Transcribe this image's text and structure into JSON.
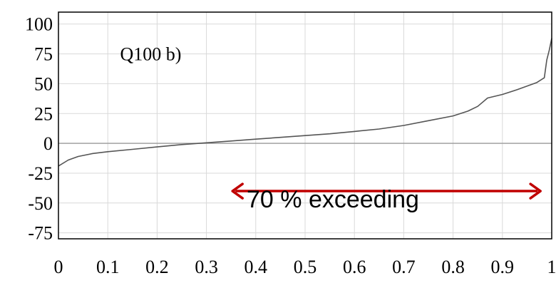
{
  "chart_data": {
    "type": "line",
    "title": "",
    "xlabel": "",
    "ylabel": "",
    "panel_label": "Q100 b)",
    "xlim": [
      0,
      1
    ],
    "ylim": [
      -80,
      110
    ],
    "x_ticks": [
      0,
      0.1,
      0.2,
      0.3,
      0.4,
      0.5,
      0.6,
      0.7,
      0.8,
      0.9,
      1
    ],
    "x_tick_labels": [
      "0",
      "0.1",
      "0.2",
      "0.3",
      "0.4",
      "0.5",
      "0.6",
      "0.7",
      "0.8",
      "0.9",
      "1"
    ],
    "y_ticks": [
      100,
      75,
      50,
      25,
      0,
      -25,
      -50,
      -75
    ],
    "y_tick_labels": [
      "100",
      "75",
      "50",
      "25",
      "0",
      "-25",
      "-50",
      "-75"
    ],
    "grid": true,
    "zero_line": true,
    "series": [
      {
        "color": "#555555",
        "x": [
          0,
          0.02,
          0.04,
          0.07,
          0.1,
          0.15,
          0.2,
          0.25,
          0.3,
          0.35,
          0.4,
          0.45,
          0.5,
          0.55,
          0.6,
          0.65,
          0.7,
          0.75,
          0.8,
          0.83,
          0.85,
          0.87,
          0.9,
          0.93,
          0.95,
          0.97,
          0.985,
          0.99,
          0.995,
          1
        ],
        "y": [
          -19,
          -14,
          -11,
          -8.5,
          -7,
          -5,
          -3,
          -1,
          0.5,
          2,
          3.5,
          5,
          6.5,
          8,
          10,
          12,
          15,
          19,
          23,
          27,
          31,
          38,
          41,
          45,
          48,
          51,
          55,
          70,
          78,
          88
        ]
      }
    ],
    "annotation": {
      "text": "70 % exceeding",
      "arrow_from_x": 0.35,
      "arrow_to_x": 0.98,
      "arrow_y": -40,
      "color": "#c00000"
    }
  }
}
